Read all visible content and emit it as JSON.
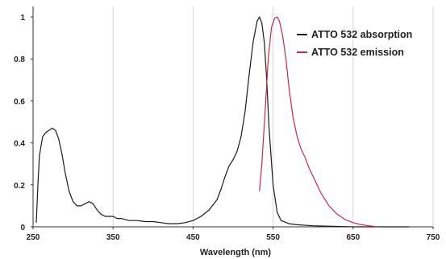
{
  "chart_data": {
    "type": "line",
    "title": "",
    "xlabel": "Wavelength (nm)",
    "ylabel": "",
    "xlim": [
      250,
      750
    ],
    "ylim": [
      0,
      1.05
    ],
    "x_ticks": [
      250,
      350,
      450,
      550,
      650,
      750
    ],
    "y_ticks": [
      0,
      0.2,
      0.4,
      0.6,
      0.8,
      1
    ],
    "x_tick_labels": [
      "250",
      "350",
      "450",
      "550",
      "650",
      "750"
    ],
    "y_tick_labels": [
      "0",
      "0.2",
      "0.4",
      "0.6",
      "0.8",
      "1"
    ],
    "grid": "vertical",
    "legend_position": "top-right",
    "series": [
      {
        "name": "ATTO 532 absorption",
        "color": "#1a1a1a",
        "x": [
          254,
          256,
          258,
          262,
          266,
          270,
          274,
          278,
          282,
          286,
          290,
          295,
          300,
          305,
          310,
          315,
          320,
          325,
          330,
          335,
          340,
          345,
          350,
          355,
          360,
          370,
          380,
          390,
          400,
          410,
          420,
          430,
          440,
          450,
          460,
          470,
          480,
          485,
          490,
          495,
          500,
          505,
          510,
          515,
          520,
          525,
          530,
          533,
          536,
          539,
          542,
          545,
          550,
          555,
          560,
          570,
          580,
          600,
          650,
          700,
          720
        ],
        "y": [
          0.02,
          0.2,
          0.34,
          0.43,
          0.45,
          0.46,
          0.47,
          0.46,
          0.42,
          0.35,
          0.26,
          0.17,
          0.12,
          0.1,
          0.1,
          0.11,
          0.12,
          0.11,
          0.08,
          0.06,
          0.05,
          0.05,
          0.05,
          0.04,
          0.04,
          0.03,
          0.03,
          0.025,
          0.025,
          0.02,
          0.015,
          0.015,
          0.02,
          0.03,
          0.05,
          0.08,
          0.13,
          0.18,
          0.24,
          0.29,
          0.32,
          0.36,
          0.43,
          0.55,
          0.72,
          0.88,
          0.98,
          1.0,
          0.97,
          0.88,
          0.7,
          0.47,
          0.2,
          0.07,
          0.03,
          0.015,
          0.01,
          0.005,
          0.0,
          0.0,
          0.0
        ]
      },
      {
        "name": "ATTO 532 emission",
        "color": "#c8284c",
        "x": [
          533,
          536,
          540,
          544,
          548,
          552,
          555,
          558,
          562,
          566,
          570,
          575,
          580,
          585,
          590,
          595,
          600,
          610,
          620,
          630,
          640,
          650,
          660,
          670,
          680
        ],
        "y": [
          0.17,
          0.3,
          0.55,
          0.8,
          0.95,
          0.995,
          1.0,
          0.98,
          0.91,
          0.8,
          0.66,
          0.52,
          0.43,
          0.37,
          0.33,
          0.28,
          0.24,
          0.16,
          0.1,
          0.06,
          0.035,
          0.02,
          0.01,
          0.005,
          0.0
        ]
      }
    ]
  }
}
